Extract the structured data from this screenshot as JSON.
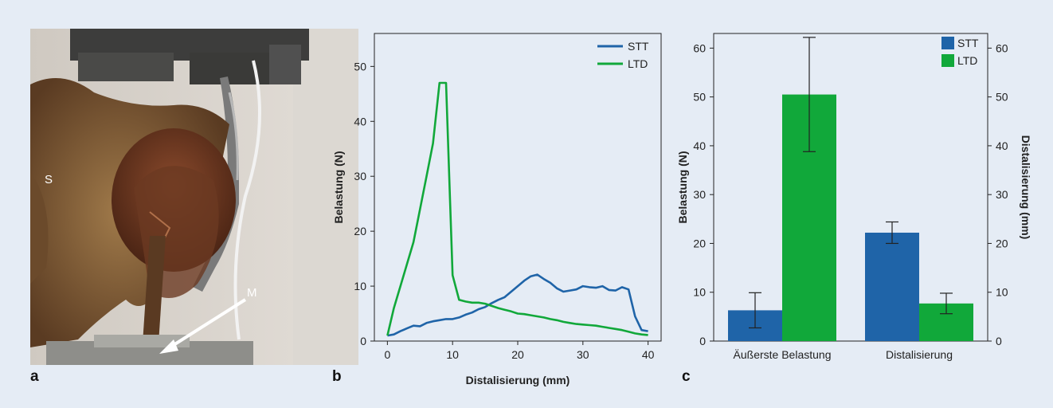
{
  "panels": {
    "a": "a",
    "b": "b",
    "c": "c"
  },
  "photo": {
    "label_s": "S",
    "label_m": "M"
  },
  "colors": {
    "stt": "#1f64a8",
    "ltd": "#11a83a",
    "background": "#e5ecf5"
  },
  "chart_data": [
    {
      "type": "line",
      "xlabel": "Distalisierung (mm)",
      "ylabel": "Belastung (N)",
      "xlim": [
        -2,
        42
      ],
      "ylim": [
        0,
        56
      ],
      "xticks": [
        0,
        10,
        20,
        30,
        40
      ],
      "yticks": [
        0,
        10,
        20,
        30,
        40,
        50
      ],
      "grid": false,
      "legend_position": "top-right",
      "series": [
        {
          "name": "STT",
          "color": "#1f64a8",
          "points": [
            [
              0,
              1
            ],
            [
              1,
              1.2
            ],
            [
              2,
              1.8
            ],
            [
              3,
              2.3
            ],
            [
              4,
              2.8
            ],
            [
              5,
              2.7
            ],
            [
              6,
              3.3
            ],
            [
              7,
              3.6
            ],
            [
              8,
              3.8
            ],
            [
              9,
              4
            ],
            [
              10,
              4
            ],
            [
              11,
              4.3
            ],
            [
              12,
              4.8
            ],
            [
              13,
              5.2
            ],
            [
              14,
              5.8
            ],
            [
              15,
              6.2
            ],
            [
              16,
              6.9
            ],
            [
              17,
              7.5
            ],
            [
              18,
              8
            ],
            [
              19,
              9
            ],
            [
              20,
              10
            ],
            [
              21,
              11
            ],
            [
              22,
              11.8
            ],
            [
              23,
              12.1
            ],
            [
              24,
              11.3
            ],
            [
              25,
              10.6
            ],
            [
              26,
              9.6
            ],
            [
              27,
              9
            ],
            [
              28,
              9.2
            ],
            [
              29,
              9.4
            ],
            [
              30,
              10
            ],
            [
              31,
              9.8
            ],
            [
              32,
              9.7
            ],
            [
              33,
              10
            ],
            [
              34,
              9.3
            ],
            [
              35,
              9.2
            ],
            [
              36,
              9.8
            ],
            [
              37,
              9.4
            ],
            [
              38,
              4.5
            ],
            [
              39,
              2
            ],
            [
              40,
              1.8
            ]
          ]
        },
        {
          "name": "LTD",
          "color": "#11a83a",
          "points": [
            [
              0,
              1
            ],
            [
              1,
              6
            ],
            [
              2,
              10
            ],
            [
              3,
              14
            ],
            [
              4,
              18
            ],
            [
              5,
              24
            ],
            [
              6,
              30
            ],
            [
              7,
              36
            ],
            [
              8,
              47
            ],
            [
              9,
              47
            ],
            [
              10,
              12
            ],
            [
              11,
              7.5
            ],
            [
              12,
              7.2
            ],
            [
              13,
              7
            ],
            [
              14,
              7
            ],
            [
              15,
              6.8
            ],
            [
              16,
              6.4
            ],
            [
              17,
              6
            ],
            [
              18,
              5.7
            ],
            [
              19,
              5.4
            ],
            [
              20,
              5
            ],
            [
              21,
              4.9
            ],
            [
              22,
              4.7
            ],
            [
              23,
              4.5
            ],
            [
              24,
              4.3
            ],
            [
              25,
              4
            ],
            [
              26,
              3.8
            ],
            [
              27,
              3.5
            ],
            [
              28,
              3.3
            ],
            [
              29,
              3.1
            ],
            [
              30,
              3
            ],
            [
              31,
              2.9
            ],
            [
              32,
              2.8
            ],
            [
              33,
              2.6
            ],
            [
              34,
              2.4
            ],
            [
              35,
              2.2
            ],
            [
              36,
              2
            ],
            [
              37,
              1.7
            ],
            [
              38,
              1.4
            ],
            [
              39,
              1.2
            ],
            [
              40,
              1.1
            ]
          ]
        }
      ]
    },
    {
      "type": "bar",
      "categories": [
        "Äußerste Belastung",
        "Distalisierung"
      ],
      "ylabel": "Belastung (N)",
      "y2label": "Distalisierung (mm)",
      "ylim": [
        0,
        63
      ],
      "yticks": [
        0,
        10,
        20,
        30,
        40,
        50,
        60
      ],
      "grid": false,
      "legend_position": "top-right",
      "series": [
        {
          "name": "STT",
          "color": "#1f64a8",
          "values": [
            6.3,
            22.2
          ],
          "errors": [
            3.6,
            2.2
          ]
        },
        {
          "name": "LTD",
          "color": "#11a83a",
          "values": [
            50.5,
            7.7
          ],
          "errors": [
            11.7,
            2.1
          ]
        }
      ]
    }
  ]
}
